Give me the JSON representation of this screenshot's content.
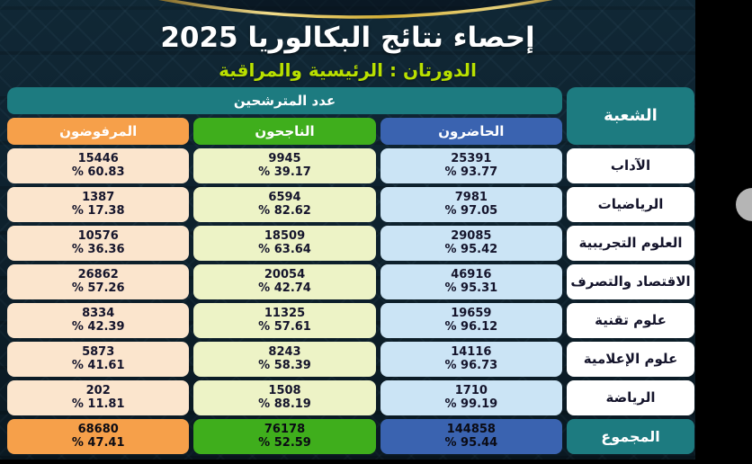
{
  "page": {
    "title": "إحصاء نتائج البكالوريا 2025",
    "subtitle": "الدورتان : الرئيسية والمراقبة"
  },
  "table": {
    "group_header": "عدد المترشحين",
    "branch_header": "الشعبة",
    "columns": [
      {
        "key": "present",
        "label": "الحاضرون"
      },
      {
        "key": "passed",
        "label": "الناجحون"
      },
      {
        "key": "refused",
        "label": "المرفوضون"
      }
    ],
    "rows": [
      {
        "branch": "الآداب",
        "total": false,
        "present": {
          "count": "25391",
          "pct": "% 93.77"
        },
        "passed": {
          "count": "9945",
          "pct": "% 39.17"
        },
        "refused": {
          "count": "15446",
          "pct": "% 60.83"
        }
      },
      {
        "branch": "الرياضيات",
        "total": false,
        "present": {
          "count": "7981",
          "pct": "% 97.05"
        },
        "passed": {
          "count": "6594",
          "pct": "% 82.62"
        },
        "refused": {
          "count": "1387",
          "pct": "% 17.38"
        }
      },
      {
        "branch": "العلوم التجريبية",
        "total": false,
        "present": {
          "count": "29085",
          "pct": "% 95.42"
        },
        "passed": {
          "count": "18509",
          "pct": "% 63.64"
        },
        "refused": {
          "count": "10576",
          "pct": "% 36.36"
        }
      },
      {
        "branch": "الاقتصاد والتصرف",
        "total": false,
        "present": {
          "count": "46916",
          "pct": "% 95.31"
        },
        "passed": {
          "count": "20054",
          "pct": "% 42.74"
        },
        "refused": {
          "count": "26862",
          "pct": "% 57.26"
        }
      },
      {
        "branch": "علوم تقنية",
        "total": false,
        "present": {
          "count": "19659",
          "pct": "% 96.12"
        },
        "passed": {
          "count": "11325",
          "pct": "% 57.61"
        },
        "refused": {
          "count": "8334",
          "pct": "% 42.39"
        }
      },
      {
        "branch": "علوم الإعلامية",
        "total": false,
        "present": {
          "count": "14116",
          "pct": "% 96.73"
        },
        "passed": {
          "count": "8243",
          "pct": "% 58.39"
        },
        "refused": {
          "count": "5873",
          "pct": "% 41.61"
        }
      },
      {
        "branch": "الرياضة",
        "total": false,
        "present": {
          "count": "1710",
          "pct": "% 99.19"
        },
        "passed": {
          "count": "1508",
          "pct": "% 88.19"
        },
        "refused": {
          "count": "202",
          "pct": "% 11.81"
        }
      },
      {
        "branch": "المجموع",
        "total": true,
        "present": {
          "count": "144858",
          "pct": "% 95.44"
        },
        "passed": {
          "count": "76178",
          "pct": "% 52.59"
        },
        "refused": {
          "count": "68680",
          "pct": "% 47.41"
        }
      }
    ]
  },
  "colors": {
    "background": "#0e2330",
    "teal_header": "#1d7b80",
    "blue_header": "#3a63b0",
    "green_header": "#3fae1c",
    "orange_header": "#f6a04a",
    "light_blue_cell": "#cbe4f5",
    "light_green_cell": "#edf3c6",
    "light_peach_cell": "#fbe5cd",
    "subtitle_green": "#b9e000",
    "gold_arc": "#d4af37",
    "handle_gray": "#b5b5b5"
  },
  "chart_data": {
    "type": "table",
    "title": "إحصاء نتائج البكالوريا 2025",
    "subtitle": "الدورتان : الرئيسية والمراقبة",
    "columns": [
      "الشعبة",
      "الحاضرون",
      "الحاضرون %",
      "الناجحون",
      "الناجحون %",
      "المرفوضون",
      "المرفوضون %"
    ],
    "rows": [
      [
        "الآداب",
        25391,
        93.77,
        9945,
        39.17,
        15446,
        60.83
      ],
      [
        "الرياضيات",
        7981,
        97.05,
        6594,
        82.62,
        1387,
        17.38
      ],
      [
        "العلوم التجريبية",
        29085,
        95.42,
        18509,
        63.64,
        10576,
        36.36
      ],
      [
        "الاقتصاد والتصرف",
        46916,
        95.31,
        20054,
        42.74,
        26862,
        57.26
      ],
      [
        "علوم تقنية",
        19659,
        96.12,
        11325,
        57.61,
        8334,
        42.39
      ],
      [
        "علوم الإعلامية",
        14116,
        96.73,
        8243,
        58.39,
        5873,
        41.61
      ],
      [
        "الرياضة",
        1710,
        99.19,
        1508,
        88.19,
        202,
        11.81
      ],
      [
        "المجموع",
        144858,
        95.44,
        76178,
        52.59,
        68680,
        47.41
      ]
    ]
  }
}
